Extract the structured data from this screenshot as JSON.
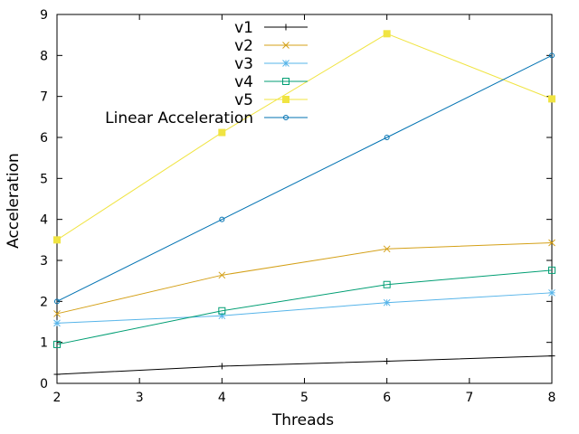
{
  "chart_data": {
    "type": "line",
    "title": "",
    "xlabel": "Threads",
    "ylabel": "Acceleration",
    "x": [
      2,
      4,
      6,
      8
    ],
    "xlim": [
      2,
      8
    ],
    "ylim": [
      0,
      9
    ],
    "xticks": [
      "2",
      "3",
      "4",
      "5",
      "6",
      "7",
      "8"
    ],
    "yticks": [
      "0",
      "1",
      "2",
      "3",
      "4",
      "5",
      "6",
      "7",
      "8",
      "9"
    ],
    "grid": false,
    "legend_position": "top-center",
    "series": [
      {
        "name": "v1",
        "values": [
          0.22,
          0.42,
          0.54,
          0.67
        ],
        "color": "#000000",
        "marker": "plus"
      },
      {
        "name": "v2",
        "values": [
          1.7,
          2.64,
          3.28,
          3.43
        ],
        "color": "#d4a017",
        "marker": "x"
      },
      {
        "name": "v3",
        "values": [
          1.47,
          1.65,
          1.97,
          2.21
        ],
        "color": "#56b4e9",
        "marker": "star"
      },
      {
        "name": "v4",
        "values": [
          0.95,
          1.77,
          2.41,
          2.76
        ],
        "color": "#009e73",
        "marker": "square-open"
      },
      {
        "name": "v5",
        "values": [
          3.5,
          6.12,
          8.53,
          6.94
        ],
        "color": "#f0e442",
        "marker": "square-filled"
      },
      {
        "name": "Linear Acceleration",
        "values": [
          2.0,
          4.0,
          6.0,
          8.0
        ],
        "color": "#0072b2",
        "marker": "circle-open"
      }
    ]
  }
}
